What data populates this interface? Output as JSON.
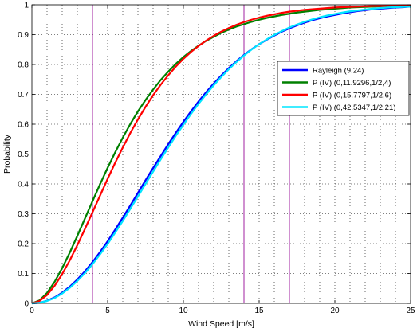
{
  "chart_data": {
    "type": "line",
    "title": "",
    "xlabel": "Wind Speed [m/s]",
    "ylabel": "Probability",
    "xlim": [
      0,
      25
    ],
    "ylim": [
      0,
      1
    ],
    "xticks": [
      0,
      5,
      10,
      15,
      20,
      25
    ],
    "yticks": [
      0,
      0.1,
      0.2,
      0.3,
      0.4,
      0.5,
      0.6,
      0.7,
      0.8,
      0.9,
      1
    ],
    "grid": true,
    "legend_position": "right",
    "vertical_markers": {
      "x": [
        4,
        14,
        17
      ],
      "color": "#a020a0"
    },
    "x": [
      0,
      0.5,
      1,
      1.5,
      2,
      2.5,
      3,
      3.5,
      4,
      4.5,
      5,
      5.5,
      6,
      6.5,
      7,
      7.5,
      8,
      8.5,
      9,
      9.5,
      10,
      10.5,
      11,
      11.5,
      12,
      12.5,
      13,
      13.5,
      14,
      14.5,
      15,
      15.5,
      16,
      16.5,
      17,
      17.5,
      18,
      18.5,
      19,
      19.5,
      20,
      20.5,
      21,
      21.5,
      22,
      22.5,
      23,
      23.5,
      24,
      24.5,
      25
    ],
    "series": [
      {
        "name": "Rayleigh (9.24)",
        "color": "#0000ff",
        "values": [
          0.0,
          0.002,
          0.009,
          0.02,
          0.036,
          0.056,
          0.08,
          0.107,
          0.138,
          0.172,
          0.208,
          0.247,
          0.287,
          0.328,
          0.37,
          0.412,
          0.453,
          0.493,
          0.533,
          0.571,
          0.608,
          0.643,
          0.676,
          0.707,
          0.736,
          0.763,
          0.788,
          0.811,
          0.832,
          0.851,
          0.868,
          0.883,
          0.897,
          0.91,
          0.921,
          0.931,
          0.94,
          0.948,
          0.955,
          0.961,
          0.966,
          0.971,
          0.975,
          0.979,
          0.982,
          0.985,
          0.987,
          0.989,
          0.991,
          0.992,
          0.994
        ]
      },
      {
        "name": "P (IV) (0,11.9296,1/2,4)",
        "color": "#008000",
        "values": [
          0.0,
          0.01,
          0.035,
          0.072,
          0.118,
          0.17,
          0.226,
          0.284,
          0.342,
          0.399,
          0.454,
          0.506,
          0.555,
          0.601,
          0.643,
          0.681,
          0.716,
          0.748,
          0.776,
          0.802,
          0.825,
          0.845,
          0.863,
          0.879,
          0.893,
          0.906,
          0.917,
          0.927,
          0.935,
          0.943,
          0.95,
          0.956,
          0.961,
          0.966,
          0.97,
          0.974,
          0.977,
          0.98,
          0.983,
          0.985,
          0.987,
          0.989,
          0.991,
          0.992,
          0.993,
          0.994,
          0.995,
          0.996,
          0.996,
          0.997,
          0.997
        ]
      },
      {
        "name": "P (IV) (0,15.7797,1/2,6)",
        "color": "#ff0000",
        "values": [
          0.0,
          0.008,
          0.028,
          0.059,
          0.098,
          0.144,
          0.195,
          0.249,
          0.305,
          0.361,
          0.417,
          0.471,
          0.522,
          0.571,
          0.616,
          0.658,
          0.697,
          0.732,
          0.764,
          0.793,
          0.819,
          0.842,
          0.862,
          0.88,
          0.896,
          0.91,
          0.922,
          0.933,
          0.942,
          0.95,
          0.957,
          0.963,
          0.968,
          0.973,
          0.977,
          0.98,
          0.983,
          0.985,
          0.987,
          0.989,
          0.991,
          0.992,
          0.993,
          0.994,
          0.995,
          0.996,
          0.996,
          0.997,
          0.997,
          0.998,
          0.998
        ]
      },
      {
        "name": "P (IV) (0,42.5347,1/2,21)",
        "color": "#00e5ff",
        "values": [
          0.0,
          0.002,
          0.008,
          0.018,
          0.033,
          0.052,
          0.075,
          0.101,
          0.131,
          0.164,
          0.199,
          0.237,
          0.276,
          0.317,
          0.358,
          0.4,
          0.441,
          0.482,
          0.522,
          0.561,
          0.598,
          0.634,
          0.668,
          0.7,
          0.73,
          0.758,
          0.784,
          0.808,
          0.83,
          0.85,
          0.868,
          0.884,
          0.899,
          0.912,
          0.924,
          0.934,
          0.943,
          0.951,
          0.958,
          0.964,
          0.969,
          0.974,
          0.978,
          0.981,
          0.984,
          0.987,
          0.989,
          0.991,
          0.992,
          0.993,
          0.994
        ]
      }
    ]
  }
}
